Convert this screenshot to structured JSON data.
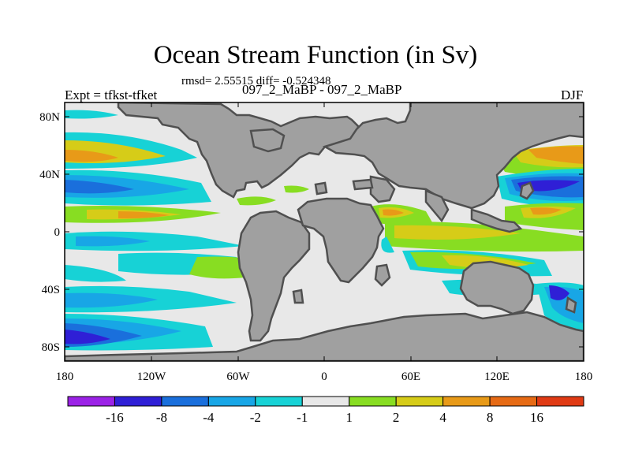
{
  "title": "Ocean Stream Function (in Sv)",
  "stats": "rmsd= 2.55515 diff= -0.524348",
  "left_label": "Expt = tfkst-tfket",
  "center_label": "097_2_MaBP - 097_2_MaBP",
  "right_label": "DJF",
  "lat_ticks": [
    "80N",
    "40N",
    "0",
    "40S",
    "80S"
  ],
  "lon_ticks": [
    "180",
    "120W",
    "60W",
    "0",
    "60E",
    "120E",
    "180"
  ],
  "colorbar": {
    "labels": [
      "-16",
      "-8",
      "-4",
      "-2",
      "-1",
      "1",
      "2",
      "4",
      "8",
      "16"
    ],
    "colors": [
      "#9b22e6",
      "#2f1fd6",
      "#1a6fdc",
      "#18a6e6",
      "#17d2d6",
      "#e8e8e8",
      "#88dd22",
      "#d6cc18",
      "#e89a18",
      "#e66a14",
      "#e03a14"
    ]
  },
  "palette": {
    "land": "#a0a0a0",
    "coast": "#505050",
    "neutral": "#e8e8e8"
  }
}
